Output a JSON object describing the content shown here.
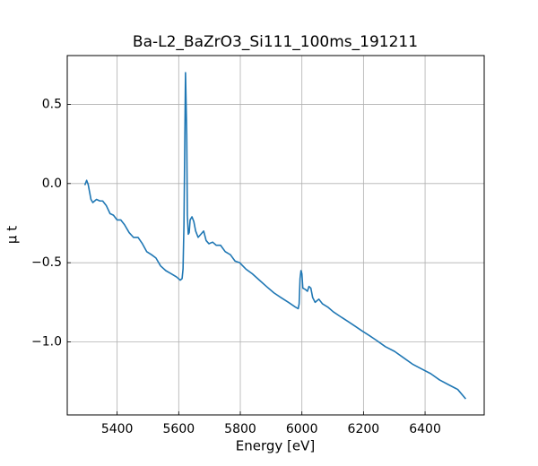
{
  "chart_data": {
    "type": "line",
    "title": "Ba-L2_BaZrO3_Si111_100ms_191211",
    "xlabel": "Energy [eV]",
    "ylabel": "μ t",
    "xlim": [
      5238,
      6592
    ],
    "ylim": [
      -1.461,
      0.808
    ],
    "xticks": [
      5400,
      5600,
      5800,
      6000,
      6200,
      6400
    ],
    "yticks": [
      {
        "value": 0.5,
        "label": "0.5"
      },
      {
        "value": 0.0,
        "label": "0.0"
      },
      {
        "value": -0.5,
        "label": "−0.5"
      },
      {
        "value": -1.0,
        "label": "−1.0"
      }
    ],
    "grid": true,
    "series": [
      {
        "color": "#1f77b4",
        "x": [
          5295,
          5301,
          5306,
          5315,
          5321,
          5333,
          5344,
          5353,
          5365,
          5377,
          5388,
          5400,
          5412,
          5424,
          5439,
          5453,
          5468,
          5482,
          5496,
          5512,
          5526,
          5541,
          5558,
          5576,
          5593,
          5605,
          5611,
          5614,
          5617,
          5620,
          5622,
          5626,
          5628,
          5631,
          5634,
          5637,
          5643,
          5649,
          5655,
          5663,
          5672,
          5681,
          5689,
          5698,
          5710,
          5722,
          5736,
          5751,
          5768,
          5783,
          5798,
          5818,
          5839,
          5862,
          5885,
          5909,
          5932,
          5956,
          5979,
          5988,
          5991,
          5994,
          5997,
          6000,
          6003,
          6012,
          6018,
          6023,
          6029,
          6035,
          6043,
          6055,
          6067,
          6084,
          6102,
          6125,
          6149,
          6172,
          6195,
          6219,
          6242,
          6271,
          6301,
          6330,
          6359,
          6388,
          6418,
          6447,
          6476,
          6506,
          6532
        ],
        "values": [
          -0.01,
          0.02,
          -0.006,
          -0.1,
          -0.12,
          -0.1,
          -0.11,
          -0.11,
          -0.14,
          -0.19,
          -0.2,
          -0.23,
          -0.23,
          -0.26,
          -0.31,
          -0.34,
          -0.34,
          -0.38,
          -0.43,
          -0.45,
          -0.47,
          -0.52,
          -0.55,
          -0.57,
          -0.59,
          -0.61,
          -0.6,
          -0.54,
          -0.26,
          0.31,
          0.7,
          0.31,
          -0.2,
          -0.32,
          -0.31,
          -0.23,
          -0.21,
          -0.24,
          -0.3,
          -0.34,
          -0.32,
          -0.3,
          -0.36,
          -0.38,
          -0.37,
          -0.39,
          -0.39,
          -0.43,
          -0.45,
          -0.49,
          -0.5,
          -0.54,
          -0.57,
          -0.61,
          -0.65,
          -0.69,
          -0.72,
          -0.75,
          -0.78,
          -0.79,
          -0.76,
          -0.6,
          -0.55,
          -0.57,
          -0.66,
          -0.67,
          -0.68,
          -0.65,
          -0.66,
          -0.72,
          -0.75,
          -0.73,
          -0.76,
          -0.78,
          -0.81,
          -0.84,
          -0.87,
          -0.9,
          -0.93,
          -0.96,
          -0.99,
          -1.03,
          -1.06,
          -1.1,
          -1.14,
          -1.17,
          -1.2,
          -1.24,
          -1.27,
          -1.3,
          -1.36
        ]
      }
    ]
  }
}
